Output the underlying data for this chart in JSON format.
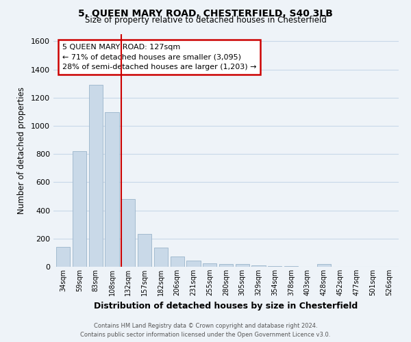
{
  "title": "5, QUEEN MARY ROAD, CHESTERFIELD, S40 3LB",
  "subtitle": "Size of property relative to detached houses in Chesterfield",
  "xlabel": "Distribution of detached houses by size in Chesterfield",
  "ylabel": "Number of detached properties",
  "footer_line1": "Contains HM Land Registry data © Crown copyright and database right 2024.",
  "footer_line2": "Contains public sector information licensed under the Open Government Licence v3.0.",
  "annotation_line1": "5 QUEEN MARY ROAD: 127sqm",
  "annotation_line2": "← 71% of detached houses are smaller (3,095)",
  "annotation_line3": "28% of semi-detached houses are larger (1,203) →",
  "bar_color": "#c9d9e8",
  "bar_edge_color": "#9ab4cb",
  "grid_color": "#c8d8e8",
  "background_color": "#eef3f8",
  "ref_line_color": "#cc0000",
  "ref_bar_index": 4,
  "categories": [
    "34sqm",
    "59sqm",
    "83sqm",
    "108sqm",
    "132sqm",
    "157sqm",
    "182sqm",
    "206sqm",
    "231sqm",
    "255sqm",
    "280sqm",
    "305sqm",
    "329sqm",
    "354sqm",
    "378sqm",
    "403sqm",
    "428sqm",
    "452sqm",
    "477sqm",
    "501sqm",
    "526sqm"
  ],
  "values": [
    140,
    820,
    1290,
    1095,
    480,
    235,
    135,
    75,
    42,
    25,
    18,
    18,
    10,
    5,
    3,
    2,
    18,
    2,
    2,
    2,
    2
  ],
  "ylim": [
    0,
    1650
  ],
  "yticks": [
    0,
    200,
    400,
    600,
    800,
    1000,
    1200,
    1400,
    1600
  ]
}
